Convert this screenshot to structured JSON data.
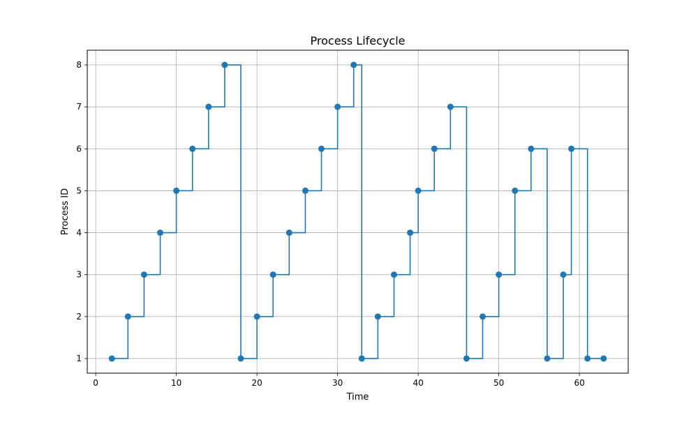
{
  "chart_data": {
    "type": "line",
    "title": "Process Lifecycle",
    "xlabel": "Time",
    "ylabel": "Process ID",
    "xlim": [
      -1.05,
      66.05
    ],
    "ylim": [
      0.65,
      8.35
    ],
    "xticks": [
      0,
      10,
      20,
      30,
      40,
      50,
      60
    ],
    "yticks": [
      1,
      2,
      3,
      4,
      5,
      6,
      7,
      8
    ],
    "grid": true,
    "legend": "none",
    "line_style": "steps-post",
    "color": "#1f77b4",
    "series": [
      {
        "x": [
          2,
          4,
          6,
          8,
          10,
          12,
          14,
          16,
          18,
          20,
          22,
          24,
          26,
          28,
          30,
          32,
          33,
          35,
          37,
          39,
          40,
          42,
          44,
          46,
          48,
          50,
          52,
          54,
          56,
          58,
          59,
          61,
          63
        ],
        "y": [
          1,
          2,
          3,
          4,
          5,
          6,
          7,
          8,
          1,
          2,
          3,
          4,
          5,
          6,
          7,
          8,
          1,
          2,
          3,
          4,
          5,
          6,
          7,
          1,
          2,
          3,
          5,
          6,
          1,
          3,
          6,
          1,
          1
        ]
      }
    ]
  }
}
